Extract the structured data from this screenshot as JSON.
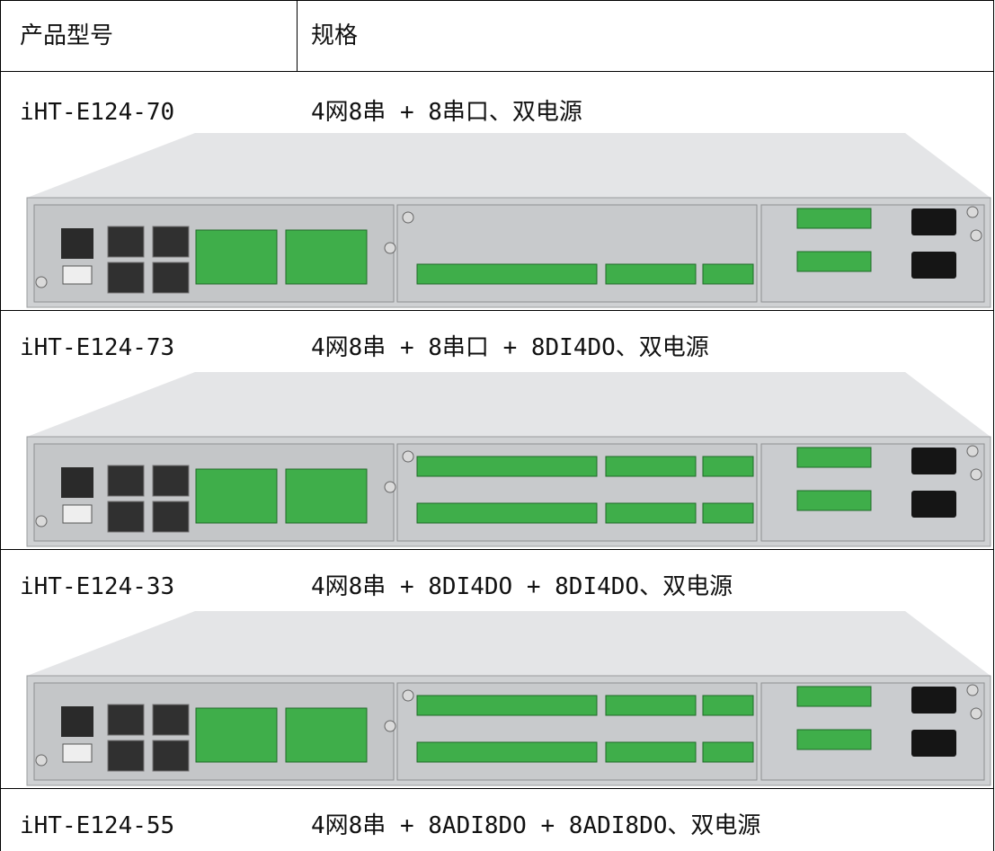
{
  "table": {
    "header": [
      "产品型号",
      "规格"
    ],
    "rows": [
      [
        "iHT-E124-70",
        "4网8串 + 8串口、双电源"
      ],
      [
        "iHT-E124-73",
        "4网8串 + 8串口 + 8DI4DO、双电源"
      ],
      [
        "iHT-E124-33",
        "4网8串 + 8DI4DO + 8DI4DO、双电源"
      ],
      [
        "iHT-E124-55",
        "4网8串 + 8ADI8DO + 8ADI8DO、双电源"
      ]
    ]
  }
}
